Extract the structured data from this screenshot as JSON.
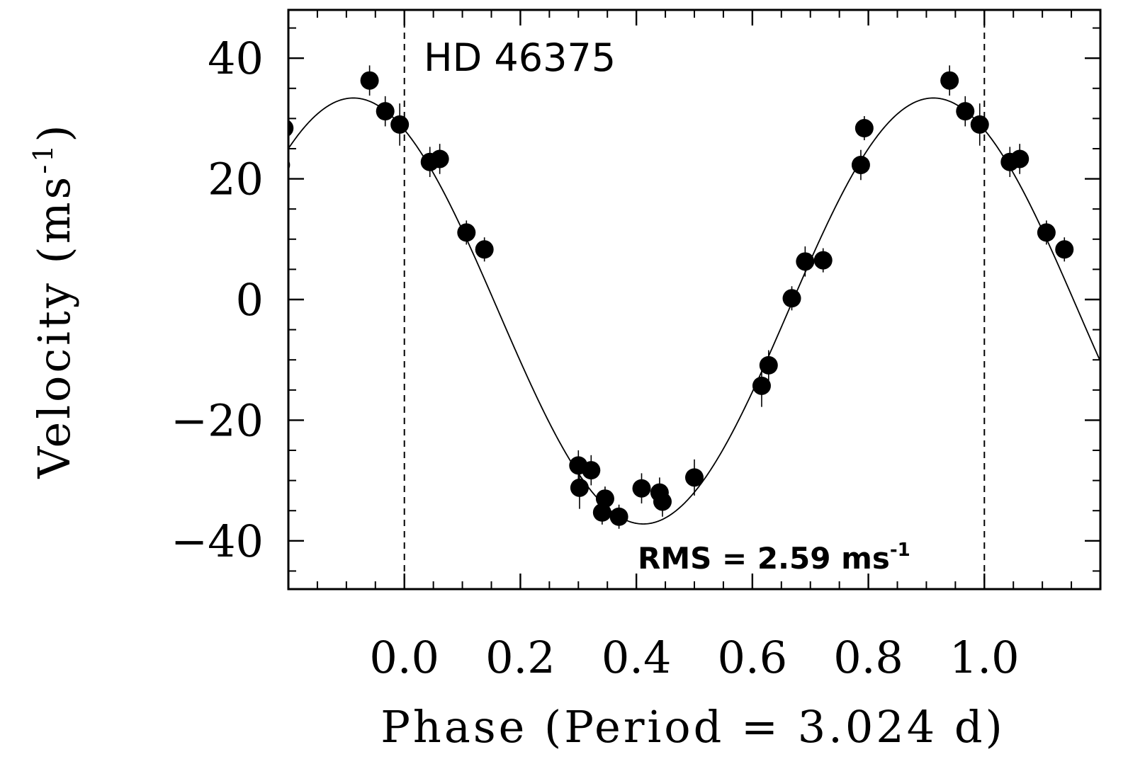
{
  "chart_data": {
    "type": "scatter",
    "title": "HD 46375",
    "annotation": "RMS = 2.59 ms",
    "annotation_superscript": "-1",
    "xlabel": "Phase (Period = 3.024 d)",
    "ylabel": "Velocity (ms",
    "ylabel_superscript": "-1",
    "ylabel_close": ")",
    "xlim": [
      -0.2,
      1.2
    ],
    "ylim": [
      -48,
      48
    ],
    "x_ticks": [
      {
        "value": 0.0,
        "label": "0.0"
      },
      {
        "value": 0.2,
        "label": "0.2"
      },
      {
        "value": 0.4,
        "label": "0.4"
      },
      {
        "value": 0.6,
        "label": "0.6"
      },
      {
        "value": 0.8,
        "label": "0.8"
      },
      {
        "value": 1.0,
        "label": "1.0"
      }
    ],
    "y_ticks": [
      {
        "value": -40,
        "label": "−40"
      },
      {
        "value": -20,
        "label": "−20"
      },
      {
        "value": 0,
        "label": "0"
      },
      {
        "value": 20,
        "label": "20"
      },
      {
        "value": 40,
        "label": "40"
      }
    ],
    "phase_markers": [
      0.0,
      1.0
    ],
    "model": {
      "type": "sine",
      "amplitude": 35.3,
      "offset": -1.9,
      "peak_phase": 0.912,
      "min_phase": 0.412
    },
    "points": [
      {
        "x": -0.06,
        "y": 36.3,
        "err": 2.5
      },
      {
        "x": -0.033,
        "y": 31.2,
        "err": 2.5
      },
      {
        "x": -0.008,
        "y": 29.0,
        "err": 3.5
      },
      {
        "x": 0.044,
        "y": 22.8,
        "err": 2.5
      },
      {
        "x": 0.061,
        "y": 23.3,
        "err": 2.5
      },
      {
        "x": 0.107,
        "y": 11.1,
        "err": 2.0
      },
      {
        "x": 0.138,
        "y": 8.3,
        "err": 2.0
      },
      {
        "x": 0.3,
        "y": -27.5,
        "err": 2.5
      },
      {
        "x": 0.302,
        "y": -31.2,
        "err": 3.5
      },
      {
        "x": 0.322,
        "y": -28.3,
        "err": 2.5
      },
      {
        "x": 0.341,
        "y": -35.3,
        "err": 2.0
      },
      {
        "x": 0.346,
        "y": -33.0,
        "err": 2.0
      },
      {
        "x": 0.37,
        "y": -36.0,
        "err": 2.0
      },
      {
        "x": 0.409,
        "y": -31.3,
        "err": 2.5
      },
      {
        "x": 0.44,
        "y": -32.0,
        "err": 2.5
      },
      {
        "x": 0.445,
        "y": -33.5,
        "err": 2.5
      },
      {
        "x": 0.5,
        "y": -29.5,
        "err": 3.0
      },
      {
        "x": 0.616,
        "y": -14.3,
        "err": 3.5
      },
      {
        "x": 0.628,
        "y": -10.9,
        "err": 2.5
      },
      {
        "x": 0.668,
        "y": 0.2,
        "err": 2.0
      },
      {
        "x": 0.691,
        "y": 6.3,
        "err": 2.5
      },
      {
        "x": 0.722,
        "y": 6.5,
        "err": 2.0
      },
      {
        "x": 0.787,
        "y": 22.3,
        "err": 2.5
      },
      {
        "x": 0.793,
        "y": 28.4,
        "err": 2.0
      },
      {
        "x": 0.94,
        "y": 36.3,
        "err": 2.5
      },
      {
        "x": 0.967,
        "y": 31.2,
        "err": 2.5
      },
      {
        "x": 0.992,
        "y": 29.0,
        "err": 3.5
      },
      {
        "x": 1.044,
        "y": 22.8,
        "err": 2.5
      },
      {
        "x": 1.061,
        "y": 23.3,
        "err": 2.5
      },
      {
        "x": 1.107,
        "y": 11.1,
        "err": 2.0
      },
      {
        "x": 1.138,
        "y": 8.3,
        "err": 2.0
      },
      {
        "x": -0.213,
        "y": 22.3,
        "err": 2.5
      },
      {
        "x": -0.207,
        "y": 28.4,
        "err": 2.0
      }
    ]
  }
}
